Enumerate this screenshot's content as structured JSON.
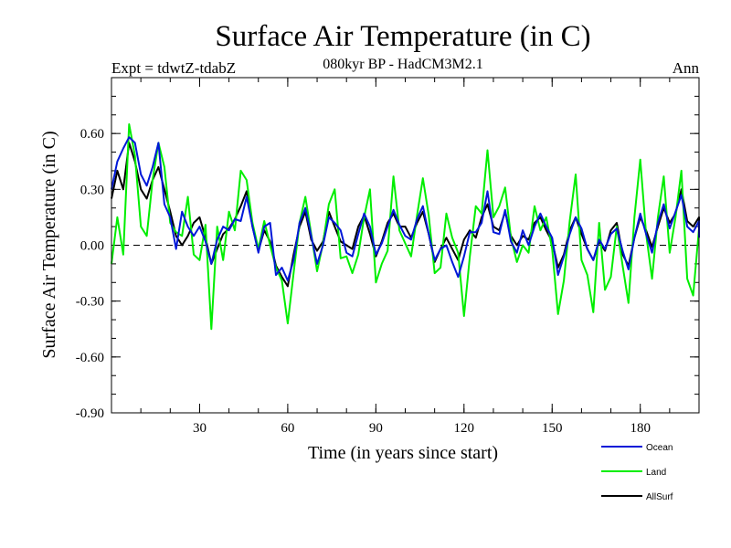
{
  "chart_data": {
    "type": "line",
    "title": "Surface Air Temperature (in C)",
    "subtitle": "080kyr BP - HadCM3M2.1",
    "left_label": "Expt = tdwtZ-tdabZ",
    "right_label": "Ann",
    "xlabel": "Time (in years since start)",
    "ylabel": "Surface Air Temperature (in C)",
    "xlim": [
      0,
      200
    ],
    "ylim": [
      -0.9,
      0.9
    ],
    "x_ticks": [
      30,
      60,
      90,
      120,
      150,
      180
    ],
    "x_tick_labels": [
      "30",
      "60",
      "90",
      "120",
      "150",
      "180"
    ],
    "y_ticks": [
      -0.9,
      -0.6,
      -0.3,
      0.0,
      0.3,
      0.6
    ],
    "y_tick_labels": [
      "-0.90",
      "-0.60",
      "-0.30",
      "0.00",
      "0.30",
      "0.60"
    ],
    "x_start": 0,
    "x_step": 2,
    "series": [
      {
        "name": "AllSurf",
        "color": "#000000",
        "values": [
          0.25,
          0.4,
          0.3,
          0.55,
          0.45,
          0.3,
          0.25,
          0.35,
          0.42,
          0.3,
          0.18,
          0.05,
          0.0,
          0.05,
          0.12,
          0.15,
          0.04,
          -0.1,
          -0.02,
          0.06,
          0.09,
          0.14,
          0.21,
          0.29,
          0.1,
          -0.03,
          0.08,
          0.02,
          -0.11,
          -0.17,
          -0.22,
          -0.05,
          0.1,
          0.18,
          0.03,
          -0.03,
          0.02,
          0.18,
          0.1,
          0.02,
          0.0,
          -0.02,
          0.1,
          0.16,
          0.06,
          -0.06,
          0.02,
          0.12,
          0.17,
          0.1,
          0.1,
          0.04,
          0.12,
          0.18,
          0.06,
          -0.09,
          -0.02,
          0.04,
          -0.02,
          -0.08,
          0.03,
          0.08,
          0.04,
          0.15,
          0.22,
          0.1,
          0.08,
          0.18,
          0.05,
          0.0,
          0.05,
          0.03,
          0.12,
          0.15,
          0.08,
          0.02,
          -0.12,
          -0.05,
          0.08,
          0.15,
          0.06,
          -0.02,
          -0.08,
          0.02,
          -0.03,
          0.08,
          0.12,
          -0.05,
          -0.11,
          0.04,
          0.15,
          0.08,
          -0.01,
          0.1,
          0.2,
          0.12,
          0.17,
          0.3,
          0.13,
          0.1,
          0.15,
          0.06
        ]
      },
      {
        "name": "Land",
        "color": "#00ee00",
        "values": [
          -0.1,
          0.15,
          -0.05,
          0.65,
          0.48,
          0.1,
          0.05,
          0.35,
          0.55,
          0.42,
          0.12,
          0.07,
          0.05,
          0.26,
          -0.05,
          -0.08,
          0.11,
          -0.45,
          0.1,
          -0.08,
          0.18,
          0.08,
          0.4,
          0.35,
          0.12,
          -0.02,
          0.13,
          0.0,
          -0.12,
          -0.19,
          -0.42,
          -0.15,
          0.12,
          0.26,
          0.06,
          -0.14,
          0.01,
          0.22,
          0.3,
          -0.07,
          -0.06,
          -0.15,
          -0.05,
          0.15,
          0.3,
          -0.2,
          -0.1,
          -0.03,
          0.37,
          0.08,
          0.01,
          -0.06,
          0.16,
          0.36,
          0.16,
          -0.15,
          -0.12,
          0.17,
          0.04,
          -0.04,
          -0.38,
          -0.06,
          0.21,
          0.17,
          0.51,
          0.15,
          0.21,
          0.31,
          0.04,
          -0.09,
          0.0,
          -0.04,
          0.21,
          0.08,
          0.15,
          -0.02,
          -0.37,
          -0.19,
          0.13,
          0.38,
          -0.08,
          -0.16,
          -0.36,
          0.12,
          -0.24,
          -0.17,
          0.1,
          -0.11,
          -0.31,
          0.15,
          0.46,
          0.06,
          -0.18,
          0.15,
          0.37,
          -0.04,
          0.15,
          0.4,
          -0.18,
          -0.27,
          0.09,
          0.08
        ]
      },
      {
        "name": "Ocean",
        "color": "#0018d8",
        "values": [
          0.3,
          0.45,
          0.52,
          0.58,
          0.55,
          0.38,
          0.32,
          0.42,
          0.55,
          0.22,
          0.15,
          -0.02,
          0.18,
          0.1,
          0.05,
          0.1,
          0.02,
          -0.1,
          0.03,
          0.1,
          0.08,
          0.14,
          0.13,
          0.26,
          0.1,
          -0.04,
          0.1,
          0.12,
          -0.16,
          -0.12,
          -0.19,
          -0.08,
          0.12,
          0.2,
          0.05,
          -0.1,
          0.0,
          0.15,
          0.12,
          0.08,
          -0.04,
          -0.06,
          0.06,
          0.17,
          0.1,
          -0.05,
          0.01,
          0.1,
          0.19,
          0.11,
          0.05,
          0.03,
          0.14,
          0.21,
          0.06,
          -0.08,
          -0.02,
          0.0,
          -0.09,
          -0.17,
          -0.06,
          0.07,
          0.07,
          0.12,
          0.29,
          0.07,
          0.06,
          0.19,
          0.02,
          -0.04,
          0.08,
          0.0,
          0.1,
          0.17,
          0.1,
          0.04,
          -0.16,
          -0.06,
          0.06,
          0.15,
          0.09,
          -0.02,
          -0.08,
          0.03,
          -0.02,
          0.06,
          0.09,
          -0.03,
          -0.13,
          0.04,
          0.17,
          0.06,
          -0.04,
          0.12,
          0.22,
          0.09,
          0.18,
          0.27,
          0.1,
          0.07,
          0.13,
          0.04
        ]
      }
    ],
    "reference_line": {
      "y": 0.0,
      "style": "dashed"
    },
    "legend": {
      "placement": "bottom-right",
      "entries": [
        {
          "label": "Ocean",
          "color": "#0018d8"
        },
        {
          "label": "Land",
          "color": "#00ee00"
        },
        {
          "label": "AllSurf",
          "color": "#000000"
        }
      ]
    }
  }
}
